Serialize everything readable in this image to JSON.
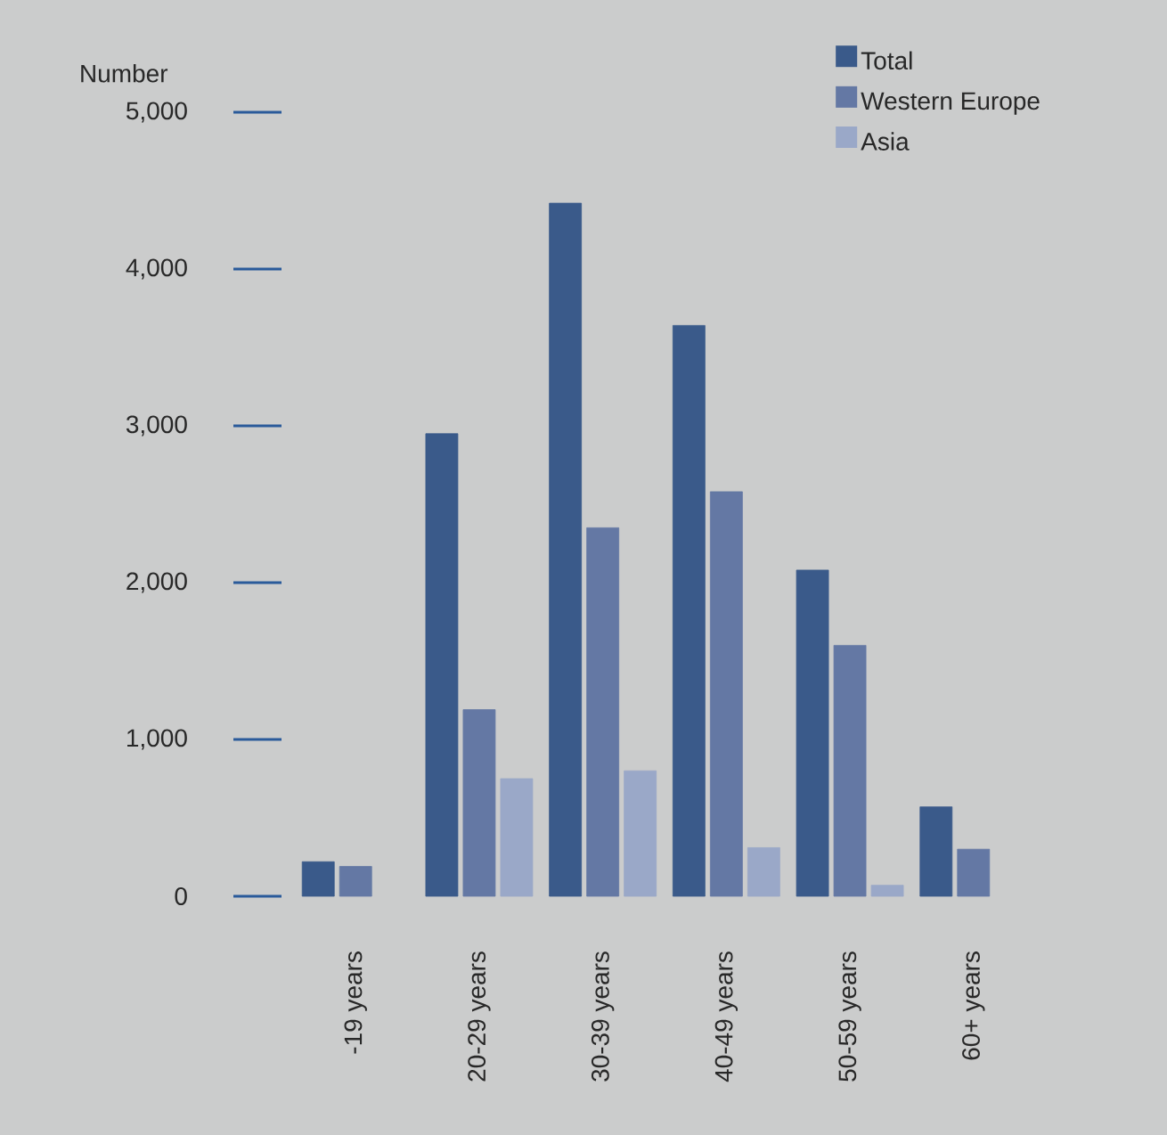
{
  "chart_data": {
    "type": "bar",
    "ylabel": "Number",
    "categories": [
      "-19 years",
      "20-29 years",
      "30-39 years",
      "40-49 years",
      "50-59 years",
      "60+ years"
    ],
    "series": [
      {
        "name": "Total",
        "color": "#3a5a8a",
        "values": [
          220,
          2950,
          4420,
          3640,
          2080,
          570
        ]
      },
      {
        "name": "Western Europe",
        "color": "#6478a4",
        "values": [
          190,
          1190,
          2350,
          2580,
          1600,
          300
        ]
      },
      {
        "name": "Asia",
        "color": "#9aa8c8",
        "values": [
          null,
          750,
          800,
          310,
          70,
          null
        ]
      }
    ],
    "ylim": [
      0,
      5000
    ],
    "yticks": [
      0,
      {
        "value": 1000,
        "label": "1,000"
      },
      {
        "value": 2000,
        "label": "2,000"
      },
      {
        "value": 3000,
        "label": "3,000"
      },
      {
        "value": 4000,
        "label": "4,000"
      },
      {
        "value": 5000,
        "label": "5,000"
      }
    ],
    "legend": "top right"
  }
}
